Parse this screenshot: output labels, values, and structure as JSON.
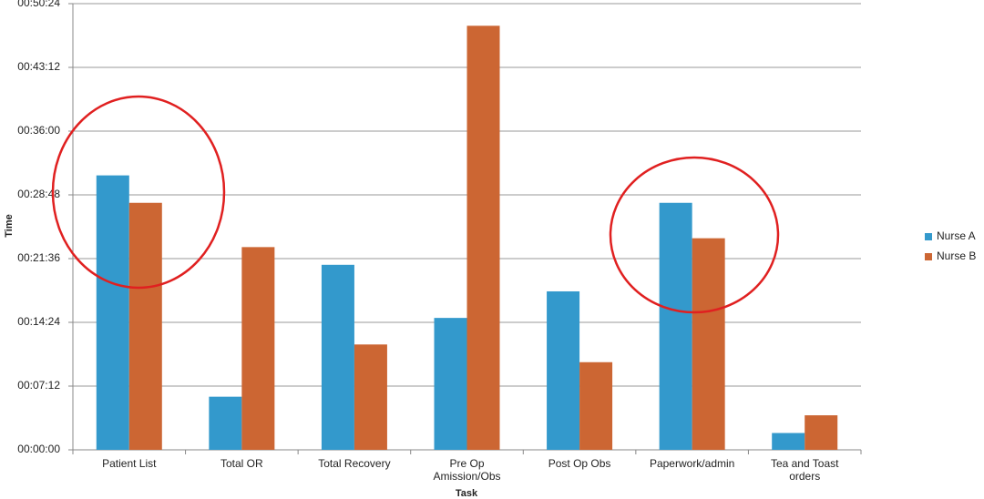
{
  "chart_data": {
    "type": "bar",
    "x_label": "Task",
    "y_label": "Time",
    "categories": [
      "Patient List",
      "Total OR",
      "Total Recovery",
      "Pre Op\nAmission/Obs",
      "Post Op Obs",
      "Paperwork/admin",
      "Tea and Toast\norders"
    ],
    "series": [
      {
        "name": "Nurse A",
        "color": "#3399cc",
        "values": [
          31,
          6,
          20.9,
          14.9,
          17.9,
          27.9,
          1.9
        ]
      },
      {
        "name": "Nurse B",
        "color": "#cc6633",
        "values": [
          27.9,
          22.9,
          11.9,
          47.9,
          9.9,
          23.9,
          3.9
        ]
      }
    ],
    "ylim": [
      0,
      50.4
    ],
    "yticks": [
      {
        "value": 0,
        "label": "00:00:00"
      },
      {
        "value": 7.2,
        "label": "00:07:12"
      },
      {
        "value": 14.4,
        "label": "00:14:24"
      },
      {
        "value": 21.6,
        "label": "00:21:36"
      },
      {
        "value": 28.8,
        "label": "00:28:48"
      },
      {
        "value": 36,
        "label": "00:36:00"
      },
      {
        "value": 43.2,
        "label": "00:43:12"
      },
      {
        "value": 50.4,
        "label": "00:50:24"
      }
    ],
    "grid": true,
    "legend": "right"
  }
}
